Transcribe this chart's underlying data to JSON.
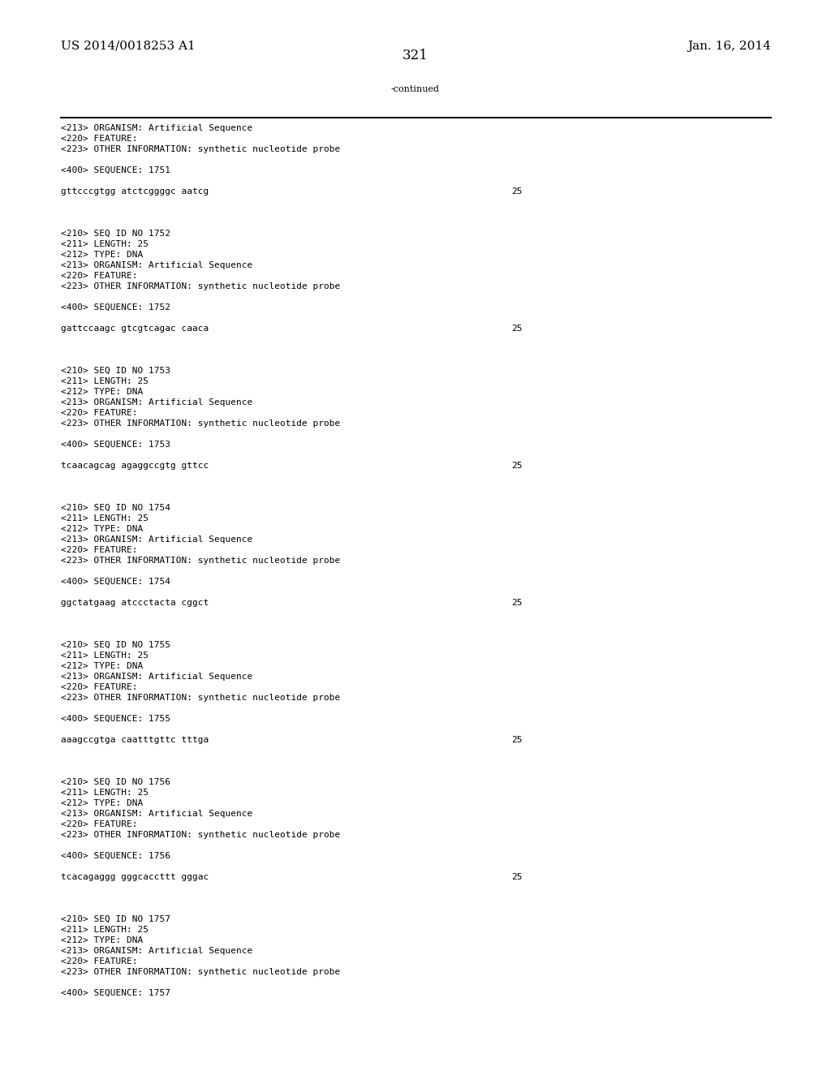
{
  "header_left": "US 2014/0018253 A1",
  "header_right": "Jan. 16, 2014",
  "page_number": "321",
  "continued_label": "-continued",
  "background_color": "#ffffff",
  "text_color": "#000000",
  "font_size_header": 11,
  "font_size_body": 8.0,
  "font_size_page": 12,
  "lines": [
    {
      "text": "<213> ORGANISM: Artificial Sequence",
      "num": null
    },
    {
      "text": "<220> FEATURE:",
      "num": null
    },
    {
      "text": "<223> OTHER INFORMATION: synthetic nucleotide probe",
      "num": null
    },
    {
      "text": "",
      "num": null
    },
    {
      "text": "<400> SEQUENCE: 1751",
      "num": null
    },
    {
      "text": "",
      "num": null
    },
    {
      "text": "gttcccgtgg atctcggggc aatcg",
      "num": "25"
    },
    {
      "text": "",
      "num": null
    },
    {
      "text": "",
      "num": null
    },
    {
      "text": "",
      "num": null
    },
    {
      "text": "<210> SEQ ID NO 1752",
      "num": null
    },
    {
      "text": "<211> LENGTH: 25",
      "num": null
    },
    {
      "text": "<212> TYPE: DNA",
      "num": null
    },
    {
      "text": "<213> ORGANISM: Artificial Sequence",
      "num": null
    },
    {
      "text": "<220> FEATURE:",
      "num": null
    },
    {
      "text": "<223> OTHER INFORMATION: synthetic nucleotide probe",
      "num": null
    },
    {
      "text": "",
      "num": null
    },
    {
      "text": "<400> SEQUENCE: 1752",
      "num": null
    },
    {
      "text": "",
      "num": null
    },
    {
      "text": "gattccaagc gtcgtcagac caaca",
      "num": "25"
    },
    {
      "text": "",
      "num": null
    },
    {
      "text": "",
      "num": null
    },
    {
      "text": "",
      "num": null
    },
    {
      "text": "<210> SEQ ID NO 1753",
      "num": null
    },
    {
      "text": "<211> LENGTH: 25",
      "num": null
    },
    {
      "text": "<212> TYPE: DNA",
      "num": null
    },
    {
      "text": "<213> ORGANISM: Artificial Sequence",
      "num": null
    },
    {
      "text": "<220> FEATURE:",
      "num": null
    },
    {
      "text": "<223> OTHER INFORMATION: synthetic nucleotide probe",
      "num": null
    },
    {
      "text": "",
      "num": null
    },
    {
      "text": "<400> SEQUENCE: 1753",
      "num": null
    },
    {
      "text": "",
      "num": null
    },
    {
      "text": "tcaacagcag agaggccgtg gttcc",
      "num": "25"
    },
    {
      "text": "",
      "num": null
    },
    {
      "text": "",
      "num": null
    },
    {
      "text": "",
      "num": null
    },
    {
      "text": "<210> SEQ ID NO 1754",
      "num": null
    },
    {
      "text": "<211> LENGTH: 25",
      "num": null
    },
    {
      "text": "<212> TYPE: DNA",
      "num": null
    },
    {
      "text": "<213> ORGANISM: Artificial Sequence",
      "num": null
    },
    {
      "text": "<220> FEATURE:",
      "num": null
    },
    {
      "text": "<223> OTHER INFORMATION: synthetic nucleotide probe",
      "num": null
    },
    {
      "text": "",
      "num": null
    },
    {
      "text": "<400> SEQUENCE: 1754",
      "num": null
    },
    {
      "text": "",
      "num": null
    },
    {
      "text": "ggctatgaag atccctacta cggct",
      "num": "25"
    },
    {
      "text": "",
      "num": null
    },
    {
      "text": "",
      "num": null
    },
    {
      "text": "",
      "num": null
    },
    {
      "text": "<210> SEQ ID NO 1755",
      "num": null
    },
    {
      "text": "<211> LENGTH: 25",
      "num": null
    },
    {
      "text": "<212> TYPE: DNA",
      "num": null
    },
    {
      "text": "<213> ORGANISM: Artificial Sequence",
      "num": null
    },
    {
      "text": "<220> FEATURE:",
      "num": null
    },
    {
      "text": "<223> OTHER INFORMATION: synthetic nucleotide probe",
      "num": null
    },
    {
      "text": "",
      "num": null
    },
    {
      "text": "<400> SEQUENCE: 1755",
      "num": null
    },
    {
      "text": "",
      "num": null
    },
    {
      "text": "aaagccgtga caatttgttc tttga",
      "num": "25"
    },
    {
      "text": "",
      "num": null
    },
    {
      "text": "",
      "num": null
    },
    {
      "text": "",
      "num": null
    },
    {
      "text": "<210> SEQ ID NO 1756",
      "num": null
    },
    {
      "text": "<211> LENGTH: 25",
      "num": null
    },
    {
      "text": "<212> TYPE: DNA",
      "num": null
    },
    {
      "text": "<213> ORGANISM: Artificial Sequence",
      "num": null
    },
    {
      "text": "<220> FEATURE:",
      "num": null
    },
    {
      "text": "<223> OTHER INFORMATION: synthetic nucleotide probe",
      "num": null
    },
    {
      "text": "",
      "num": null
    },
    {
      "text": "<400> SEQUENCE: 1756",
      "num": null
    },
    {
      "text": "",
      "num": null
    },
    {
      "text": "tcacagaggg gggcaccttt gggac",
      "num": "25"
    },
    {
      "text": "",
      "num": null
    },
    {
      "text": "",
      "num": null
    },
    {
      "text": "",
      "num": null
    },
    {
      "text": "<210> SEQ ID NO 1757",
      "num": null
    },
    {
      "text": "<211> LENGTH: 25",
      "num": null
    },
    {
      "text": "<212> TYPE: DNA",
      "num": null
    },
    {
      "text": "<213> ORGANISM: Artificial Sequence",
      "num": null
    },
    {
      "text": "<220> FEATURE:",
      "num": null
    },
    {
      "text": "<223> OTHER INFORMATION: synthetic nucleotide probe",
      "num": null
    },
    {
      "text": "",
      "num": null
    },
    {
      "text": "<400> SEQUENCE: 1757",
      "num": null
    }
  ]
}
